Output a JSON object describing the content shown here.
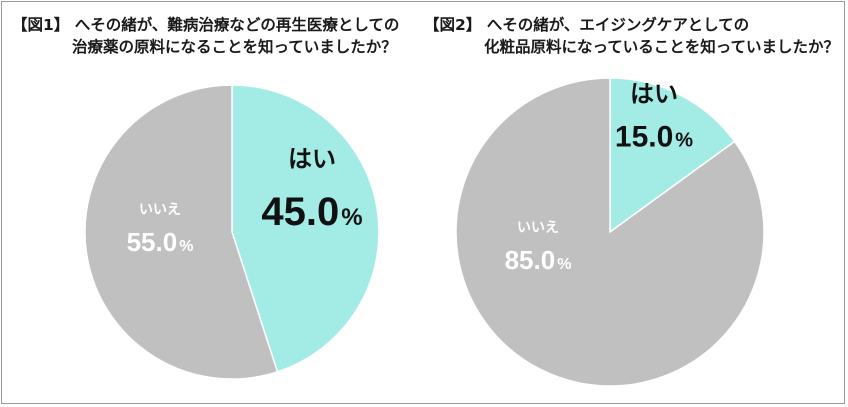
{
  "chart_data": [
    {
      "type": "pie",
      "figure_label": "【図1】",
      "title_line1": "へその緒が、難病治療などの再生医療としての",
      "title_line2": "治療薬の原料になることを知っていましたか？",
      "slices": [
        {
          "label": "はい",
          "value": 45.0,
          "value_text": "45.0",
          "unit": "%",
          "color": "#a3ece6",
          "text_color": "#111111"
        },
        {
          "label": "いいえ",
          "value": 55.0,
          "value_text": "55.0",
          "unit": "%",
          "color": "#c0c0c0",
          "text_color": "#ffffff"
        }
      ]
    },
    {
      "type": "pie",
      "figure_label": "【図2】",
      "title_line1": "へその緒が、エイジングケアとしての",
      "title_line2": "化粧品原料になっていることを知っていましたか？",
      "slices": [
        {
          "label": "はい",
          "value": 15.0,
          "value_text": "15.0",
          "unit": "%",
          "color": "#a3ece6",
          "text_color": "#111111"
        },
        {
          "label": "いいえ",
          "value": 85.0,
          "value_text": "85.0",
          "unit": "%",
          "color": "#c0c0c0",
          "text_color": "#ffffff"
        }
      ]
    }
  ]
}
